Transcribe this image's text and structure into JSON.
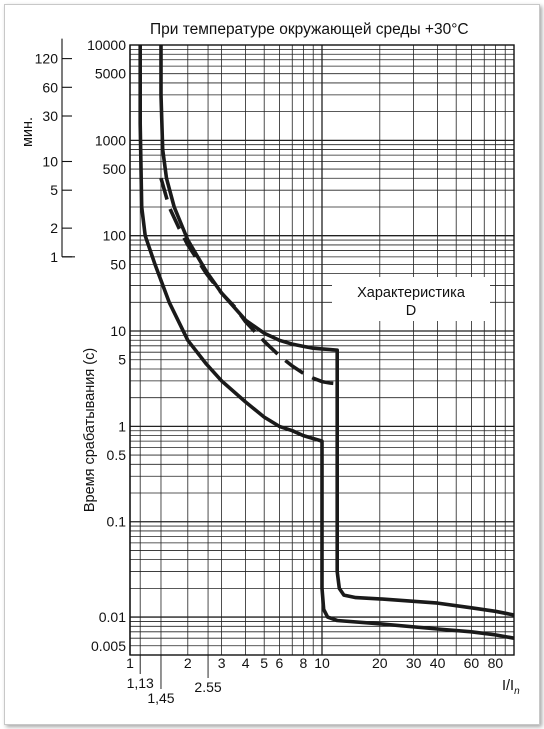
{
  "chart_data": {
    "type": "line",
    "title": "При температуре окружающей среды +30°C",
    "ylabel": "Время срабатывания (с)",
    "ylabel_min": "мин.",
    "xlabel_prefix": "I/I",
    "xlabel_sub": "n",
    "annotation_lines": [
      "Характеристика",
      "D"
    ],
    "x_scale": "log",
    "y_scale": "log",
    "xlim": [
      1,
      100
    ],
    "ylim": [
      0.004,
      10000
    ],
    "grid": true,
    "x_ticks": [
      "1",
      "2",
      "3",
      "4",
      "5",
      "6",
      "8",
      "10",
      "20",
      "30",
      "40",
      "60",
      "80"
    ],
    "x_extra_ticks": [
      "1,13",
      "1,45",
      "2.55"
    ],
    "y_ticks": [
      "10000",
      "5000",
      "1000",
      "500",
      "100",
      "50",
      "10",
      "5",
      "1",
      "0.5",
      "0.1",
      "0.01",
      "0.005"
    ],
    "y_min_ticks": [
      "120",
      "60",
      "30",
      "10",
      "5",
      "2",
      "1"
    ],
    "series": [
      {
        "style": "solid",
        "x": [
          1.13,
          1.13,
          1.15,
          1.2,
          1.35,
          1.6,
          2.0,
          2.5,
          3.0,
          4.0,
          5.0,
          6.0,
          7.0,
          8.0,
          10.0,
          10.0,
          10.2,
          10.7,
          12.0,
          20.0,
          40.0,
          60.0,
          80.0,
          100.0
        ],
        "y": [
          10000,
          1500,
          200,
          100,
          50,
          20,
          8,
          4.5,
          3.0,
          1.8,
          1.25,
          1.0,
          0.9,
          0.8,
          0.7,
          0.02,
          0.012,
          0.01,
          0.0092,
          0.0085,
          0.0075,
          0.007,
          0.0065,
          0.006
        ]
      },
      {
        "style": "solid",
        "x": [
          1.45,
          1.45,
          1.48,
          1.55,
          1.7,
          2.0,
          2.5,
          3.0,
          4.0,
          5.0,
          6.0,
          7.0,
          8.0,
          9.0,
          10.0,
          11.0,
          12.0,
          12.0,
          12.3,
          13.0,
          15.0,
          20.0,
          40.0,
          60.0,
          80.0,
          100.0
        ],
        "y": [
          10000,
          3000,
          800,
          400,
          200,
          90,
          42,
          25,
          13,
          9.5,
          8.0,
          7.3,
          6.9,
          6.6,
          6.5,
          6.4,
          6.3,
          0.03,
          0.02,
          0.017,
          0.016,
          0.0155,
          0.014,
          0.0125,
          0.0115,
          0.0105
        ]
      },
      {
        "style": "dashed",
        "x": [
          1.45,
          1.6,
          1.8,
          2.0,
          2.5,
          3.0,
          3.5,
          4.0,
          5.0,
          6.0,
          7.0,
          8.0,
          9.0,
          10.0,
          11.0,
          12.0
        ],
        "y": [
          400,
          200,
          120,
          80,
          40,
          25,
          18,
          12.5,
          7.8,
          5.5,
          4.3,
          3.6,
          3.2,
          2.95,
          2.85,
          2.8
        ]
      }
    ]
  }
}
